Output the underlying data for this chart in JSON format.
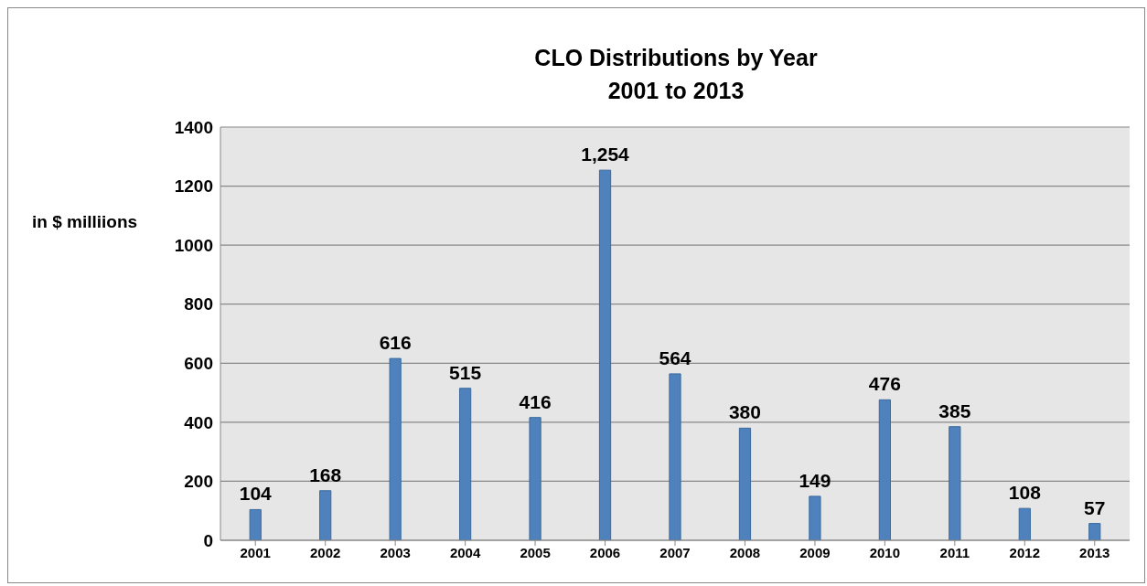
{
  "chart_data": {
    "type": "bar",
    "title": "CLO Distributions by Year\n2001 to 2013",
    "ylabel": "in $ milliions",
    "categories": [
      "2001",
      "2002",
      "2003",
      "2004",
      "2005",
      "2006",
      "2007",
      "2008",
      "2009",
      "2010",
      "2011",
      "2012",
      "2013"
    ],
    "values": [
      104,
      168,
      616,
      515,
      416,
      1254,
      564,
      380,
      149,
      476,
      385,
      108,
      57
    ],
    "value_labels": [
      "104",
      "168",
      "616",
      "515",
      "416",
      "1,254",
      "564",
      "380",
      "149",
      "476",
      "385",
      "108",
      "57"
    ],
    "color": "#4f81bd",
    "ylim": [
      0,
      1400
    ],
    "yticks": [
      0,
      200,
      400,
      600,
      800,
      1000,
      1200,
      1400
    ],
    "grid": "y",
    "legend": false
  }
}
